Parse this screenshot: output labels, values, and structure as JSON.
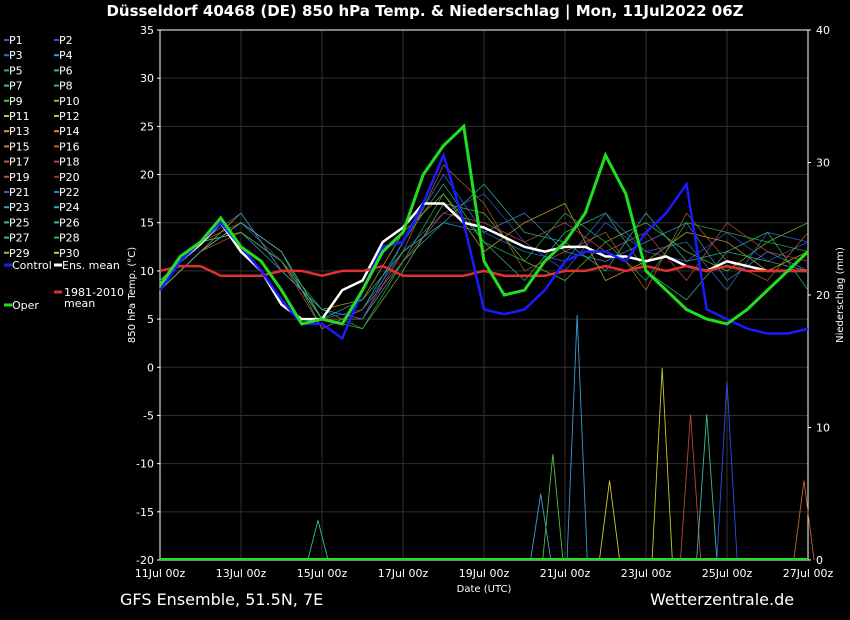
{
  "header": {
    "title": "Düsseldorf 40468 (DE)  850 hPa Temp. & Niederschlag | Mon, 11Jul2022 06Z"
  },
  "footer": {
    "left": "GFS Ensemble, 51.5N, 7E",
    "right": "Wetterzentrale.de"
  },
  "chart_data": {
    "type": "line",
    "xlabel": "Date (UTC)",
    "ylabel_left": "850 hPa Temp. (°C)",
    "ylabel_right": "Niederschlag (mm)",
    "x_ticks": [
      "11Jul 00z",
      "13Jul 00z",
      "15Jul 00z",
      "17Jul 00z",
      "19Jul 00z",
      "21Jul 00z",
      "23Jul 00z",
      "25Jul 00z",
      "27Jul 00z"
    ],
    "xlim_days": [
      0,
      16
    ],
    "left_ticks": [
      35,
      30,
      25,
      20,
      15,
      10,
      5,
      0,
      -5,
      -10,
      -15,
      -20
    ],
    "ylim_left": [
      -20,
      35
    ],
    "right_ticks": [
      40,
      30,
      20,
      10,
      0
    ],
    "ylim_right": [
      0,
      40
    ],
    "grid": true,
    "legend_position": "left",
    "legend": [
      {
        "name": "P1",
        "color": "#3c5adc"
      },
      {
        "name": "P2",
        "color": "#2e4ee6"
      },
      {
        "name": "P3",
        "color": "#2f6fd8"
      },
      {
        "name": "P4",
        "color": "#3a9ad8"
      },
      {
        "name": "P5",
        "color": "#2aa8a0"
      },
      {
        "name": "P6",
        "color": "#2ec27a"
      },
      {
        "name": "P7",
        "color": "#2fc47d"
      },
      {
        "name": "P8",
        "color": "#35b850"
      },
      {
        "name": "P9",
        "color": "#4cc43c"
      },
      {
        "name": "P10",
        "color": "#6cc82c"
      },
      {
        "name": "P11",
        "color": "#c8c826"
      },
      {
        "name": "P12",
        "color": "#d6b52a"
      },
      {
        "name": "P13",
        "color": "#d6a42a"
      },
      {
        "name": "P14",
        "color": "#d48a2a"
      },
      {
        "name": "P15",
        "color": "#c87a3a"
      },
      {
        "name": "P16",
        "color": "#c0662a"
      },
      {
        "name": "P17",
        "color": "#c85a3a"
      },
      {
        "name": "P18",
        "color": "#b8463a"
      },
      {
        "name": "P19",
        "color": "#c84a4a"
      },
      {
        "name": "P20",
        "color": "#a83030"
      },
      {
        "name": "P21",
        "color": "#3a5ad8"
      },
      {
        "name": "P22",
        "color": "#2a7ae0"
      },
      {
        "name": "P23",
        "color": "#3aa0c8"
      },
      {
        "name": "P24",
        "color": "#30b0c0"
      },
      {
        "name": "P25",
        "color": "#30c0a0"
      },
      {
        "name": "P26",
        "color": "#36c880"
      },
      {
        "name": "P27",
        "color": "#30c060"
      },
      {
        "name": "P28",
        "color": "#2cb84c"
      },
      {
        "name": "P29",
        "color": "#7cd030"
      },
      {
        "name": "P30",
        "color": "#d8c82a"
      },
      {
        "name": "Control",
        "color": "#1b1bff"
      },
      {
        "name": "Ens. mean",
        "color": "#ffffff"
      },
      {
        "name": "Oper",
        "color": "#22dd22"
      },
      {
        "name": "1981-2010 mean",
        "color": "#e03030"
      }
    ],
    "series": [
      {
        "name": "Ens. mean",
        "color": "#ffffff",
        "x": [
          0,
          0.5,
          1,
          1.5,
          2,
          2.5,
          3,
          3.5,
          4,
          4.5,
          5,
          5.5,
          6,
          6.5,
          7,
          7.5,
          8,
          8.5,
          9,
          9.5,
          10,
          10.5,
          11,
          11.5,
          12,
          12.5,
          13,
          13.5,
          14,
          14.5,
          15,
          15.5,
          16
        ],
        "y": [
          8.5,
          11,
          12.8,
          15,
          12,
          10,
          6.5,
          5,
          5,
          8,
          9,
          13,
          14.5,
          17,
          17,
          15,
          14.5,
          13.5,
          12.5,
          12,
          12.5,
          12.5,
          11.5,
          11.5,
          11,
          11.5,
          10.5,
          10,
          11,
          10.5,
          10,
          10,
          10
        ]
      },
      {
        "name": "1981-2010 mean",
        "color": "#e03030",
        "x": [
          0,
          0.5,
          1,
          1.5,
          2,
          2.5,
          3,
          3.5,
          4,
          4.5,
          5,
          5.5,
          6,
          6.5,
          7,
          7.5,
          8,
          8.5,
          9,
          9.5,
          10,
          10.5,
          11,
          11.5,
          12,
          12.5,
          13,
          13.5,
          14,
          14.5,
          15,
          15.5,
          16
        ],
        "y": [
          10,
          10.5,
          10.5,
          9.5,
          9.5,
          9.5,
          10,
          10,
          9.5,
          10,
          10,
          10.5,
          9.5,
          9.5,
          9.5,
          9.5,
          10,
          9.5,
          9.5,
          9.5,
          10,
          10,
          10.5,
          10,
          10.5,
          10,
          10.5,
          10,
          10.5,
          10,
          10,
          10,
          10
        ]
      },
      {
        "name": "Control",
        "color": "#1b1bff",
        "x": [
          0,
          0.5,
          1,
          1.5,
          2,
          2.5,
          3,
          3.5,
          4,
          4.5,
          5,
          5.5,
          6,
          6.5,
          7,
          7.5,
          8,
          8.5,
          9,
          9.5,
          10,
          10.5,
          11,
          11.5,
          12,
          12.5,
          13,
          13.5,
          14,
          14.5,
          15,
          15.5,
          16
        ],
        "y": [
          8,
          11,
          13,
          15,
          12.5,
          10,
          7,
          4.5,
          4.5,
          3,
          8,
          12.5,
          13,
          17,
          22,
          15,
          6,
          5.5,
          6,
          8,
          11,
          12,
          12,
          11,
          14,
          16,
          19,
          6,
          5,
          4,
          3.5,
          3.5,
          4
        ]
      },
      {
        "name": "Oper",
        "color": "#22dd22",
        "x": [
          0,
          0.5,
          1,
          1.5,
          2,
          2.5,
          3,
          3.5,
          4,
          4.5,
          5,
          5.5,
          6,
          6.5,
          7,
          7.5,
          8,
          8.5,
          9,
          9.5,
          10,
          10.5,
          11,
          11.5,
          12,
          12.5,
          13,
          13.5,
          14,
          14.5,
          15,
          15.5,
          16
        ],
        "y": [
          8.5,
          11.5,
          13,
          15.5,
          12.5,
          11,
          8,
          4.5,
          5,
          4.5,
          8,
          12,
          14,
          20,
          23,
          25,
          11,
          7.5,
          8,
          11,
          13,
          16,
          22,
          18,
          10,
          8,
          6,
          5,
          4.5,
          6,
          8,
          10,
          12
        ]
      }
    ],
    "ensemble_members": {
      "x": [
        0,
        1,
        2,
        3,
        4,
        5,
        6,
        7,
        8,
        9,
        10,
        11,
        12,
        13,
        14,
        15,
        16
      ],
      "values": [
        [
          8,
          12,
          15,
          11,
          5,
          6,
          12,
          16,
          18,
          13,
          10,
          15,
          12,
          11,
          14,
          11,
          13
        ],
        [
          9,
          13,
          14,
          10,
          6,
          5,
          11,
          15,
          14,
          16,
          12,
          11,
          13,
          15,
          9,
          12,
          10
        ],
        [
          8,
          12,
          15,
          12,
          4,
          6,
          13,
          19,
          13,
          9,
          14,
          16,
          10,
          7,
          12,
          14,
          8
        ],
        [
          9,
          13,
          14,
          11,
          5,
          4,
          10,
          17,
          16,
          11,
          9,
          13,
          15,
          12,
          10,
          13,
          15
        ],
        [
          8,
          12,
          16,
          10,
          6,
          7,
          14,
          18,
          12,
          15,
          17,
          9,
          11,
          14,
          13,
          10,
          12
        ],
        [
          9,
          13,
          15,
          12,
          5,
          5,
          12,
          21,
          17,
          10,
          12,
          14,
          8,
          16,
          11,
          9,
          14
        ],
        [
          8,
          12,
          14,
          11,
          4,
          6,
          11,
          16,
          15,
          13,
          15,
          12,
          14,
          9,
          15,
          12,
          11
        ],
        [
          9,
          13,
          16,
          10,
          6,
          5,
          13,
          20,
          14,
          12,
          11,
          16,
          12,
          13,
          8,
          14,
          13
        ],
        [
          8,
          12,
          15,
          12,
          5,
          7,
          12,
          15,
          19,
          14,
          13,
          10,
          16,
          11,
          12,
          11,
          10
        ],
        [
          9,
          13,
          14,
          11,
          6,
          4,
          11,
          18,
          13,
          11,
          16,
          13,
          9,
          15,
          14,
          13,
          12
        ]
      ]
    },
    "precip_spikes": [
      {
        "x": 10.3,
        "mm": 18.5
      },
      {
        "x": 12.4,
        "mm": 14.5
      },
      {
        "x": 13.1,
        "mm": 11
      },
      {
        "x": 13.5,
        "mm": 11
      },
      {
        "x": 14.0,
        "mm": 13.5
      },
      {
        "x": 9.7,
        "mm": 8
      },
      {
        "x": 15.9,
        "mm": 6
      },
      {
        "x": 9.4,
        "mm": 5
      },
      {
        "x": 11.1,
        "mm": 6
      },
      {
        "x": 3.9,
        "mm": 3
      }
    ]
  }
}
